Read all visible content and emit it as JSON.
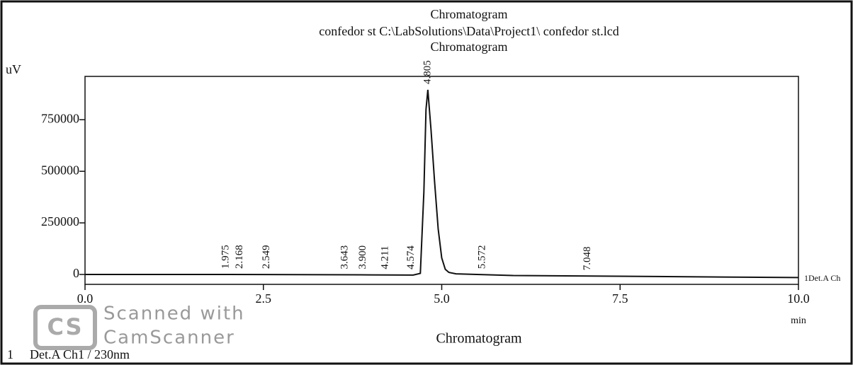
{
  "chart_data": {
    "type": "line",
    "title": "Chromatogram",
    "subtitle": "confedor st C:\\LabSolutions\\Data\\Project1\\ confedor st.lcd",
    "subtitle2": "Chromatogram",
    "y_label": "uV",
    "x_label": "min",
    "footer_title": "Chromatogram",
    "legend_index": "1",
    "trace_end_label": "1Det.A Ch",
    "watermark": {
      "logo": "CS",
      "line1": "Scanned with",
      "line2": "CamScanner"
    },
    "x": [
      0,
      2,
      4,
      4.6,
      4.7,
      4.75,
      4.78,
      4.805,
      4.85,
      4.9,
      4.95,
      5.0,
      5.05,
      5.1,
      5.2,
      6,
      8,
      10
    ],
    "series": [
      {
        "name": "Det.A Ch1 / 230nm",
        "color": "#111111",
        "values": [
          0,
          0,
          -2000,
          -3000,
          5000,
          400000,
          800000,
          895000,
          700000,
          450000,
          220000,
          80000,
          25000,
          10000,
          3000,
          -5000,
          -10000,
          -15000
        ]
      }
    ],
    "peak_labels": [
      "1.975",
      "2.168",
      "2.549",
      "3.643",
      "3.900",
      "4.211",
      "4.574",
      "4.805",
      "5.572",
      "7.048"
    ],
    "xlim": [
      0,
      10
    ],
    "xticks": [
      {
        "value": 0,
        "label": "0.0"
      },
      {
        "value": 2.5,
        "label": "2.5"
      },
      {
        "value": 5,
        "label": "5.0"
      },
      {
        "value": 7.5,
        "label": "7.5"
      },
      {
        "value": 10,
        "label": "10.0"
      }
    ],
    "ylim": [
      -48000,
      960000
    ],
    "yticks": [
      0,
      250000,
      500000,
      750000
    ],
    "grid": false
  }
}
